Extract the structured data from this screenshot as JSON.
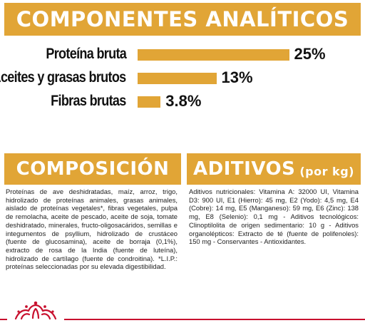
{
  "header": {
    "title": "COMPONENTES ANALÍTICOS"
  },
  "analytics": [
    {
      "label": "Proteína bruta",
      "value_text": "25%",
      "value": 25
    },
    {
      "label": "Aceites y grasas brutos",
      "value_text": "13%",
      "value": 13
    },
    {
      "label": "Fibras brutas",
      "value_text": "3.8%",
      "value": 3.8
    }
  ],
  "composition": {
    "title": "COMPOSICIÓN",
    "text": "Proteínas de ave deshidratadas, maíz, arroz, trigo, hidrolizado de proteínas animales, grasas animales, aislado de proteínas vegetales*, fibras vegetales, pulpa de remolacha, aceite de pescado, aceite de soja, tomate deshidratado, minerales, fructo-oligosacáridos, semillas e integumentos de psyllium, hidrolizado de crustáceo (fuente de glucosamina), aceite de borraja (0,1%), extracto de rosa de la India (fuente de luteína), hidrolizado de cartílago (fuente de condroitina). *L.I.P.: proteínas seleccionadas por su elevada digestibilidad."
  },
  "additives": {
    "title": "ADITIVOS",
    "unit": "(por kg)",
    "text": "Aditivos nutricionales: Vitamina A: 32000 UI, Vitamina D3: 900 UI, E1 (Hierro): 45 mg, E2 (Yodo): 4,5 mg, E4 (Cobre): 14 mg, E5 (Manganeso): 59 mg, E6 (Zinc): 138 mg, E8 (Selenio): 0,1 mg - Aditivos tecnológicos: Clinoptilolita de origen sedimentario: 10 g - Aditivos organolépticos: Extracto de té (fuente de polifenoles): 150 mg - Conservantes - Antioxidantes."
  },
  "colors": {
    "accent": "#e1a536",
    "brand_red": "#c8102e"
  },
  "icons": {
    "logo": "royal-canin-crown-icon"
  }
}
